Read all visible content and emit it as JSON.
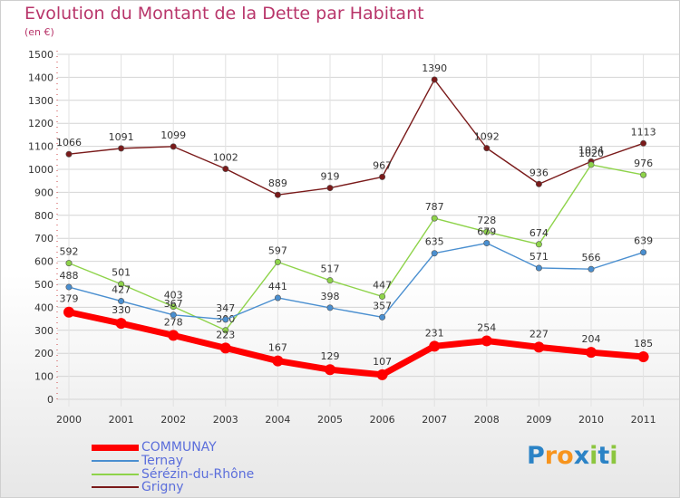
{
  "title": "Evolution du Montant de la Dette par Habitant",
  "subtitle": "(en €)",
  "brand": "Proxiti",
  "colors": {
    "title": "#b8356a",
    "axis_text": "#333333",
    "legend_text": "#5b6edb"
  },
  "chart_data": {
    "type": "line",
    "title": "Evolution du Montant de la Dette par Habitant",
    "subtitle": "(en €)",
    "xlabel": "",
    "ylabel": "",
    "ylim": [
      0,
      1500
    ],
    "yticks": [
      0,
      100,
      200,
      300,
      400,
      500,
      600,
      700,
      800,
      900,
      1000,
      1100,
      1200,
      1300,
      1400,
      1500
    ],
    "grid": true,
    "legend_position": "bottom-left",
    "categories": [
      "2000",
      "2001",
      "2002",
      "2003",
      "2004",
      "2005",
      "2006",
      "2007",
      "2008",
      "2009",
      "2010",
      "2011"
    ],
    "series": [
      {
        "name": "Grigny",
        "color": "#7a1a1a",
        "values": [
          1066,
          1091,
          1099,
          1002,
          889,
          919,
          967,
          1390,
          1092,
          936,
          1034,
          1113
        ]
      },
      {
        "name": "Sérézin-du-Rhône",
        "color": "#8ed34a",
        "values": [
          592,
          501,
          403,
          300,
          597,
          517,
          447,
          787,
          728,
          674,
          1020,
          976
        ],
        "value_labels": [
          "592",
          "501",
          "403",
          "300",
          "597",
          "517",
          "447",
          "787",
          "728",
          "674",
          "1020",
          "976"
        ]
      },
      {
        "name": "Ternay",
        "color": "#4a8fd0",
        "values": [
          488,
          427,
          367,
          347,
          441,
          398,
          357,
          635,
          679,
          571,
          566,
          639
        ],
        "value_labels": [
          "488",
          "427",
          "367",
          "347",
          "441",
          "398",
          "357",
          "635",
          "679",
          "571",
          "566",
          "639"
        ]
      },
      {
        "name": "COMMUNAY",
        "color": "#ff0000",
        "values": [
          379,
          330,
          278,
          223,
          167,
          129,
          107,
          231,
          254,
          227,
          204,
          185
        ]
      }
    ]
  },
  "legend": [
    {
      "name": "COMMUNAY",
      "color": "#ff0000"
    },
    {
      "name": "Ternay",
      "color": "#4a8fd0"
    },
    {
      "name": "Sérézin-du-Rhône",
      "color": "#8ed34a"
    },
    {
      "name": "Grigny",
      "color": "#7a1a1a"
    }
  ]
}
